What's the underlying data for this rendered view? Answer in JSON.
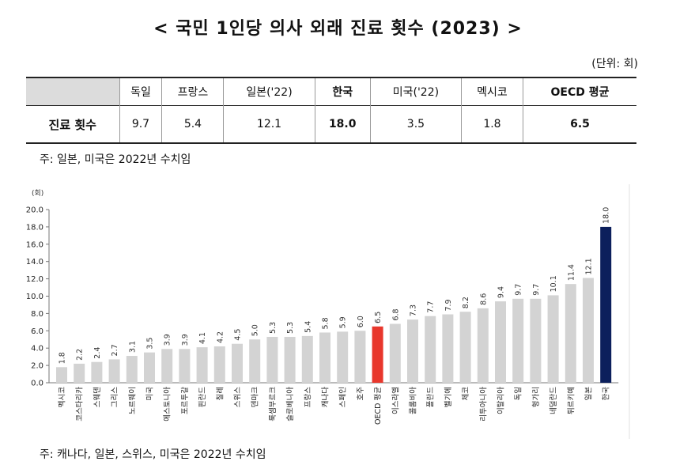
{
  "title": "< 국민 1인당 의사 외래 진료 횟수 (2023) >",
  "unit_label": "(단위: 회)",
  "table": {
    "headers": [
      "",
      "독일",
      "프랑스",
      "일본('22)",
      "한국",
      "미국('22)",
      "멕시코",
      "OECD 평균"
    ],
    "row_label": "진료 횟수",
    "values": [
      "9.7",
      "5.4",
      "12.1",
      "18.0",
      "3.5",
      "1.8",
      "6.5"
    ]
  },
  "table_note": "주: 일본, 미국은 2022년 수치임",
  "chart_note": "주: 캐나다, 일본, 스위스, 미국은 2022년 수치임",
  "chart_data": {
    "type": "bar",
    "y_unit_label": "(회)",
    "ylim": [
      0,
      20
    ],
    "yticks": [
      "0.0",
      "2.0",
      "4.0",
      "6.0",
      "8.0",
      "10.0",
      "12.0",
      "14.0",
      "16.0",
      "18.0",
      "20.0"
    ],
    "grid": false,
    "categories": [
      "멕시코",
      "코스타리카",
      "스웨덴",
      "그리스",
      "노르웨이",
      "미국",
      "에스토니아",
      "포르투갈",
      "핀란드",
      "칠레",
      "스위스",
      "덴마크",
      "룩셈부르크",
      "슬로베니아",
      "프랑스",
      "캐나다",
      "스페인",
      "호주",
      "OECD 평균",
      "이스라엘",
      "콜롬비아",
      "폴란드",
      "벨기에",
      "체코",
      "리투아니아",
      "이탈리아",
      "독일",
      "헝가리",
      "네덜란드",
      "튀르키예",
      "일본",
      "한국"
    ],
    "values": [
      1.8,
      2.2,
      2.4,
      2.7,
      3.1,
      3.5,
      3.9,
      3.9,
      4.1,
      4.2,
      4.5,
      5.0,
      5.3,
      5.3,
      5.4,
      5.8,
      5.9,
      6.0,
      6.5,
      6.8,
      7.3,
      7.7,
      7.9,
      8.2,
      8.6,
      9.4,
      9.7,
      9.7,
      10.1,
      11.4,
      12.1,
      18.0
    ],
    "colors": {
      "default": "#d3d3d3",
      "oecd": "#e8372c",
      "korea": "#0c1f5c"
    },
    "highlight": {
      "OECD 평균": "oecd",
      "한국": "korea"
    }
  }
}
